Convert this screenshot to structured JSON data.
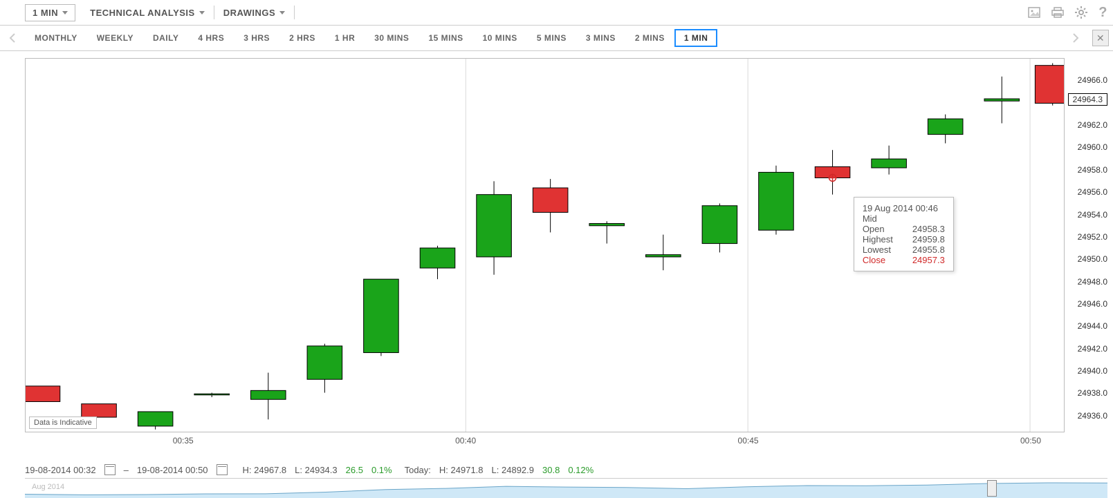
{
  "toolbar": {
    "period_dd": "1 MIN",
    "technical_dd": "TECHNICAL ANALYSIS",
    "drawings_dd": "DRAWINGS"
  },
  "timeframes": {
    "items": [
      "MONTHLY",
      "WEEKLY",
      "DAILY",
      "4 HRS",
      "3 HRS",
      "2 HRS",
      "1 HR",
      "30 MINS",
      "15 MINS",
      "10 MINS",
      "5 MINS",
      "3 MINS",
      "2 MINS",
      "1 MIN"
    ],
    "active_index": 13
  },
  "chart": {
    "type": "candlestick",
    "y_min": 24934.5,
    "y_max": 24968.0,
    "y_ticks": [
      24936.0,
      24938.0,
      24940.0,
      24942.0,
      24944.0,
      24946.0,
      24948.0,
      24950.0,
      24952.0,
      24954.0,
      24956.0,
      24958.0,
      24960.0,
      24962.0,
      24964.0,
      24966.0
    ],
    "y_tick_labels": [
      "24936.0",
      "24938.0",
      "24940.0",
      "24942.0",
      "24944.0",
      "24946.0",
      "24948.0",
      "24950.0",
      "24952.0",
      "24954.0",
      "24956.0",
      "24958.0",
      "24960.0",
      "24962.0",
      "24964.0",
      "24966.0"
    ],
    "current_price": 24964.3,
    "current_price_label": "24964.3",
    "x_ticks": [
      {
        "minute": 35,
        "label": "00:35"
      },
      {
        "minute": 40,
        "label": "00:40"
      },
      {
        "minute": 45,
        "label": "00:45"
      },
      {
        "minute": 50,
        "label": "00:50"
      }
    ],
    "x_grid_minutes": [
      32,
      40,
      45,
      50
    ],
    "minute_start": 32.2,
    "minute_end": 50.6,
    "up_color": "#1aa41a",
    "down_color": "#e03333",
    "wick_color": "#000000",
    "border_color": "#000000",
    "grid_color": "#d9d9d9",
    "background_color": "#ffffff",
    "bar_width_minutes": 0.62,
    "candles": [
      {
        "m": 32.5,
        "o": 24938.6,
        "h": 24938.6,
        "l": 24937.2,
        "c": 24937.2,
        "dir": "down"
      },
      {
        "m": 33.5,
        "o": 24937.0,
        "h": 24937.0,
        "l": 24935.8,
        "c": 24935.8,
        "dir": "down"
      },
      {
        "m": 34.5,
        "o": 24935.0,
        "h": 24936.3,
        "l": 24934.7,
        "c": 24936.3,
        "dir": "up"
      },
      {
        "m": 35.5,
        "o": 24937.8,
        "h": 24938.0,
        "l": 24937.6,
        "c": 24937.9,
        "dir": "up"
      },
      {
        "m": 36.5,
        "o": 24937.4,
        "h": 24939.8,
        "l": 24935.6,
        "c": 24938.2,
        "dir": "up"
      },
      {
        "m": 37.5,
        "o": 24939.2,
        "h": 24942.4,
        "l": 24938.0,
        "c": 24942.2,
        "dir": "up"
      },
      {
        "m": 38.5,
        "o": 24941.6,
        "h": 24948.2,
        "l": 24941.3,
        "c": 24948.2,
        "dir": "up"
      },
      {
        "m": 39.5,
        "o": 24949.2,
        "h": 24951.2,
        "l": 24948.2,
        "c": 24951.0,
        "dir": "up"
      },
      {
        "m": 40.5,
        "o": 24950.2,
        "h": 24957.0,
        "l": 24948.6,
        "c": 24955.8,
        "dir": "up"
      },
      {
        "m": 41.5,
        "o": 24956.4,
        "h": 24957.2,
        "l": 24952.4,
        "c": 24954.2,
        "dir": "down"
      },
      {
        "m": 42.5,
        "o": 24953.0,
        "h": 24953.4,
        "l": 24951.4,
        "c": 24953.2,
        "dir": "up"
      },
      {
        "m": 43.5,
        "o": 24950.2,
        "h": 24952.2,
        "l": 24949.0,
        "c": 24950.4,
        "dir": "up"
      },
      {
        "m": 44.5,
        "o": 24951.4,
        "h": 24955.0,
        "l": 24950.6,
        "c": 24954.8,
        "dir": "up"
      },
      {
        "m": 45.5,
        "o": 24952.6,
        "h": 24958.4,
        "l": 24952.2,
        "c": 24957.8,
        "dir": "up"
      },
      {
        "m": 46.5,
        "o": 24958.3,
        "h": 24959.8,
        "l": 24955.8,
        "c": 24957.3,
        "dir": "down"
      },
      {
        "m": 47.5,
        "o": 24958.2,
        "h": 24960.2,
        "l": 24957.6,
        "c": 24959.0,
        "dir": "up"
      },
      {
        "m": 48.5,
        "o": 24961.2,
        "h": 24963.0,
        "l": 24960.4,
        "c": 24962.6,
        "dir": "up"
      },
      {
        "m": 49.5,
        "o": 24964.2,
        "h": 24966.4,
        "l": 24962.2,
        "c": 24964.4,
        "dir": "up"
      },
      {
        "m": 50.4,
        "o": 24967.4,
        "h": 24967.6,
        "l": 24963.8,
        "c": 24964.0,
        "dir": "down"
      }
    ],
    "indicative_label": "Data is Indicative"
  },
  "tooltip": {
    "candle_index": 14,
    "datetime": "19 Aug 2014 00:46",
    "type": "Mid",
    "open_label": "Open",
    "open": "24958.3",
    "high_label": "Highest",
    "high": "24959.8",
    "low_label": "Lowest",
    "low": "24955.8",
    "close_label": "Close",
    "close": "24957.3"
  },
  "status": {
    "from": "19-08-2014 00:32",
    "dash": "–",
    "to": "19-08-2014 00:50",
    "h_label": "H:",
    "h": "24967.8",
    "l_label": "L:",
    "l": "24934.3",
    "range": "26.5",
    "range_pct": "0.1%",
    "today_label": "Today:",
    "today_h_label": "H:",
    "today_h": "24971.8",
    "today_l_label": "L:",
    "today_l": "24892.9",
    "today_range": "30.8",
    "today_range_pct": "0.12%"
  },
  "mini": {
    "label": "Aug 2014"
  }
}
